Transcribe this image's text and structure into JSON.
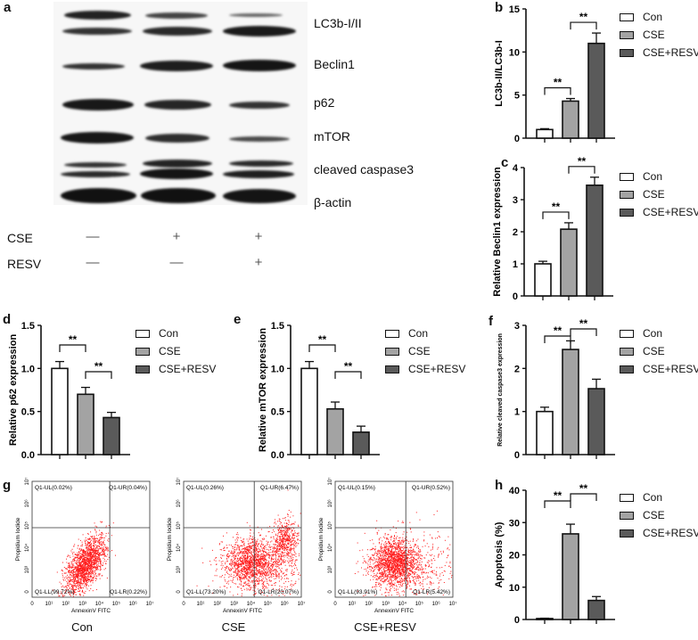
{
  "figure": {
    "panel_letters": [
      "a",
      "b",
      "c",
      "d",
      "e",
      "f",
      "g",
      "h"
    ]
  },
  "western_blot": {
    "bands": [
      "LC3b-I/II",
      "Beclin1",
      "p62",
      "mTOR",
      "cleaved caspase3",
      "β-actin"
    ],
    "treatments": [
      {
        "label": "CSE",
        "signs": [
          "—",
          "+",
          "+"
        ]
      },
      {
        "label": "RESV",
        "signs": [
          "—",
          "—",
          "+"
        ]
      }
    ]
  },
  "legend": {
    "items": [
      {
        "label": "Con",
        "color": "#ffffff"
      },
      {
        "label": "CSE",
        "color": "#a3a3a3"
      },
      {
        "label": "CSE+RESV",
        "color": "#5a5a5a"
      }
    ]
  },
  "flow": {
    "x_axis_label": "AnnexinV FITC",
    "y_axis_label": "Propidium Iodide",
    "x_ticks": [
      "0",
      "10¹",
      "10²",
      "10³",
      "10⁴",
      "10⁵",
      "10⁶",
      "10⁷"
    ],
    "y_ticks": [
      "0",
      "10³",
      "10⁴",
      "10⁵",
      "10⁶",
      "10⁷"
    ],
    "panels": [
      {
        "caption": "Con",
        "UL": "Q1-UL(0.02%)",
        "UR": "Q1-UR(0.04%)",
        "LL": "Q1-LL(99.72%)",
        "LR": "Q1-LR(0.22%)"
      },
      {
        "caption": "CSE",
        "UL": "Q1-UL(0.26%)",
        "UR": "Q1-UR(6.47%)",
        "LL": "Q1-LL(73.20%)",
        "LR": "Q1-LR(20.07%)"
      },
      {
        "caption": "CSE+RESV",
        "UL": "Q1-UL(0.15%)",
        "UR": "Q1-UR(0.52%)",
        "LL": "Q1-LL(93.91%)",
        "LR": "Q1-LR(5.42%)"
      }
    ]
  },
  "chart_data": [
    {
      "panel": "b",
      "type": "bar",
      "categories": [
        "Con",
        "CSE",
        "CSE+RESV"
      ],
      "values": [
        1.0,
        4.3,
        11.0
      ],
      "errors": [
        0.1,
        0.3,
        1.2
      ],
      "ylabel": "LC3b-II/LC3b-I",
      "xlabel": "",
      "ylim": [
        0,
        15
      ],
      "yticks": [
        0,
        5,
        10,
        15
      ],
      "significance": [
        {
          "pair": [
            "Con",
            "CSE"
          ],
          "label": "**"
        },
        {
          "pair": [
            "CSE",
            "CSE+RESV"
          ],
          "label": "**"
        }
      ],
      "legend": [
        "Con",
        "CSE",
        "CSE+RESV"
      ],
      "legend_position": "right"
    },
    {
      "panel": "c",
      "type": "bar",
      "categories": [
        "Con",
        "CSE",
        "CSE+RESV"
      ],
      "values": [
        1.0,
        2.08,
        3.45
      ],
      "errors": [
        0.08,
        0.2,
        0.25
      ],
      "ylabel": "Relative Beclin1 expression",
      "xlabel": "",
      "ylim": [
        0,
        4
      ],
      "yticks": [
        0,
        1,
        2,
        3,
        4
      ],
      "significance": [
        {
          "pair": [
            "Con",
            "CSE"
          ],
          "label": "**"
        },
        {
          "pair": [
            "CSE",
            "CSE+RESV"
          ],
          "label": "**"
        }
      ],
      "legend": [
        "Con",
        "CSE",
        "CSE+RESV"
      ],
      "legend_position": "right"
    },
    {
      "panel": "d",
      "type": "bar",
      "categories": [
        "Con",
        "CSE",
        "CSE+RESV"
      ],
      "values": [
        1.0,
        0.7,
        0.43
      ],
      "errors": [
        0.08,
        0.08,
        0.06
      ],
      "ylabel": "Relative p62 expression",
      "xlabel": "",
      "ylim": [
        0,
        1.5
      ],
      "yticks": [
        "0.0",
        "0.5",
        "1.0",
        "1.5"
      ],
      "significance": [
        {
          "pair": [
            "Con",
            "CSE"
          ],
          "label": "**"
        },
        {
          "pair": [
            "CSE",
            "CSE+RESV"
          ],
          "label": "**"
        }
      ],
      "legend": [
        "Con",
        "CSE",
        "CSE+RESV"
      ],
      "legend_position": "right"
    },
    {
      "panel": "e",
      "type": "bar",
      "categories": [
        "Con",
        "CSE",
        "CSE+RESV"
      ],
      "values": [
        1.0,
        0.53,
        0.26
      ],
      "errors": [
        0.08,
        0.08,
        0.07
      ],
      "ylabel": "Relative mTOR expression",
      "xlabel": "",
      "ylim": [
        0,
        1.5
      ],
      "yticks": [
        "0.0",
        "0.5",
        "1.0",
        "1.5"
      ],
      "significance": [
        {
          "pair": [
            "Con",
            "CSE"
          ],
          "label": "**"
        },
        {
          "pair": [
            "CSE",
            "CSE+RESV"
          ],
          "label": "**"
        }
      ],
      "legend": [
        "Con",
        "CSE",
        "CSE+RESV"
      ],
      "legend_position": "right"
    },
    {
      "panel": "f",
      "type": "bar",
      "categories": [
        "Con",
        "CSE",
        "CSE+RESV"
      ],
      "values": [
        1.0,
        2.44,
        1.53
      ],
      "errors": [
        0.1,
        0.2,
        0.22
      ],
      "ylabel": "Relative cleaved caspase3 expression",
      "xlabel": "",
      "ylim": [
        0,
        3
      ],
      "yticks": [
        0,
        1,
        2,
        3
      ],
      "significance": [
        {
          "pair": [
            "Con",
            "CSE"
          ],
          "label": "**"
        },
        {
          "pair": [
            "CSE",
            "CSE+RESV"
          ],
          "label": "**"
        }
      ],
      "legend": [
        "Con",
        "CSE",
        "CSE+RESV"
      ],
      "legend_position": "right"
    },
    {
      "panel": "h",
      "type": "bar",
      "categories": [
        "Con",
        "CSE",
        "CSE+RESV"
      ],
      "values": [
        0.3,
        26.5,
        5.9
      ],
      "errors": [
        0.1,
        3.0,
        1.2
      ],
      "ylabel": "Apoptosis (%)",
      "xlabel": "",
      "ylim": [
        0,
        40
      ],
      "yticks": [
        0,
        10,
        20,
        30,
        40
      ],
      "significance": [
        {
          "pair": [
            "Con",
            "CSE"
          ],
          "label": "**"
        },
        {
          "pair": [
            "CSE",
            "CSE+RESV"
          ],
          "label": "**"
        }
      ],
      "legend": [
        "Con",
        "CSE",
        "CSE+RESV"
      ],
      "legend_position": "right"
    }
  ]
}
